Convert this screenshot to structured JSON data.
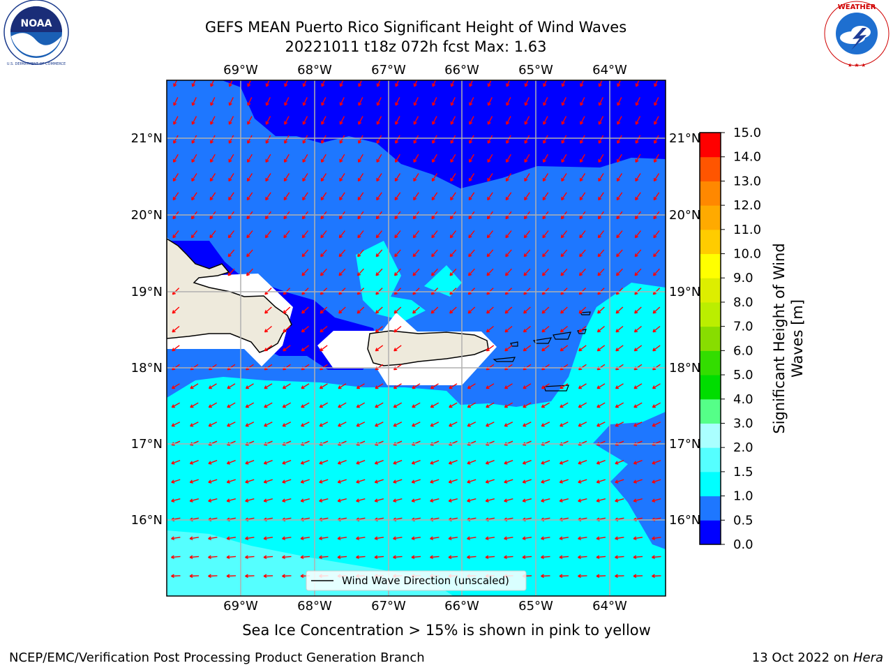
{
  "title": {
    "line1": "GEFS MEAN Puerto Rico Significant Height of Wind Waves",
    "line2": "20221011 t18z 072h fcst   Max: 1.63"
  },
  "logos": {
    "left": "NOAA",
    "right": "NATIONAL WEATHER SERVICE"
  },
  "map": {
    "lon_labels": [
      "69°W",
      "68°W",
      "67°W",
      "66°W",
      "65°W",
      "64°W"
    ],
    "lat_labels": [
      "21°N",
      "20°N",
      "19°N",
      "18°N",
      "17°N",
      "16°N"
    ],
    "legend_label": "Wind Wave Direction (unscaled)",
    "arrow_color": "#ff0000"
  },
  "colorbar": {
    "label_line1": "Significant Height of Wind",
    "label_line2": "Waves [m]",
    "ticks": [
      "0.0",
      "0.5",
      "1.0",
      "1.5",
      "2.0",
      "3.0",
      "4.0",
      "5.0",
      "6.0",
      "7.0",
      "8.0",
      "9.0",
      "10.0",
      "11.0",
      "12.0",
      "13.0",
      "14.0",
      "15.0"
    ],
    "colors": [
      "#0000ff",
      "#1e77ff",
      "#00ffff",
      "#55ffff",
      "#aaffff",
      "#55ff88",
      "#00dd00",
      "#33dd00",
      "#88dd00",
      "#bbee00",
      "#ddee00",
      "#ffff00",
      "#ffcc00",
      "#ffaa00",
      "#ff8800",
      "#ff5500",
      "#ff0000"
    ]
  },
  "subnote": "Sea Ice Concentration > 15% is shown in pink to yellow",
  "footer": {
    "left": "NCEP/EMC/Verification Post Processing Product Generation Branch",
    "right_prefix": "13 Oct 2022 on ",
    "right_italic": "Hera"
  }
}
